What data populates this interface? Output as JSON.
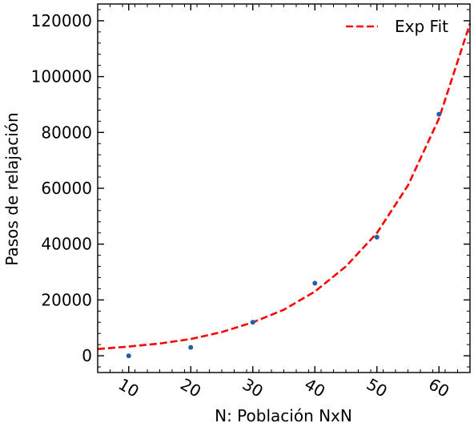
{
  "chart_data": {
    "type": "scatter",
    "title": "",
    "xlabel": "N: Población NxN",
    "ylabel": "Pasos de relajación",
    "xlim": [
      5,
      65
    ],
    "ylim": [
      -6000,
      126000
    ],
    "xticks": [
      10,
      20,
      30,
      40,
      50,
      60
    ],
    "xtick_labels": [
      "10",
      "20",
      "30",
      "40",
      "50",
      "60"
    ],
    "xtick_rotation_deg": 30,
    "yticks": [
      0,
      20000,
      40000,
      60000,
      80000,
      100000,
      120000
    ],
    "ytick_labels": [
      "0",
      "20000",
      "40000",
      "60000",
      "80000",
      "100000",
      "120000"
    ],
    "grid": false,
    "legend": {
      "position": "top-right",
      "entries": [
        "Exp Fit"
      ]
    },
    "series": [
      {
        "type": "scatter",
        "color": "#1f5fa8",
        "x": [
          10,
          20,
          30,
          40,
          50,
          60
        ],
        "y": [
          0,
          3000,
          12000,
          26000,
          42500,
          86500
        ]
      },
      {
        "type": "line",
        "name": "Exp Fit",
        "style": "dashed",
        "color": "#ff0000",
        "x": [
          5,
          10,
          15,
          20,
          25,
          30,
          35,
          40,
          45,
          50,
          55,
          60,
          65
        ],
        "y": [
          2400,
          3300,
          4400,
          6000,
          8500,
          12000,
          16500,
          23000,
          32000,
          44000,
          61000,
          85000,
          119000
        ]
      }
    ]
  }
}
